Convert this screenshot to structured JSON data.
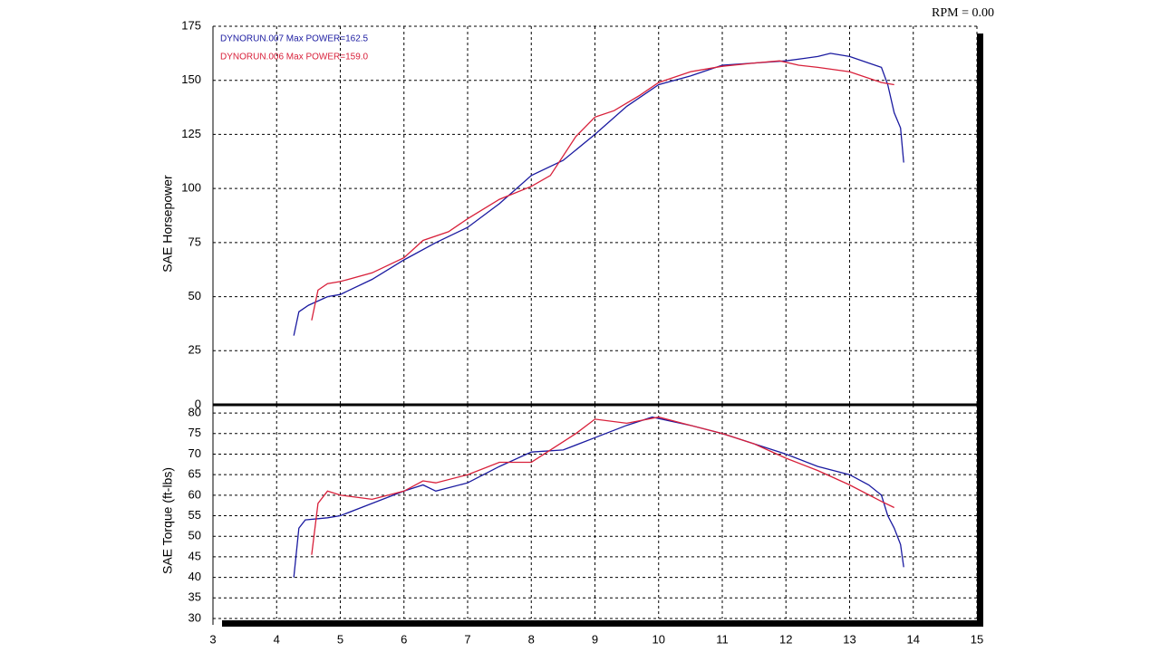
{
  "chart_data": [
    {
      "type": "line",
      "annotation": "RPM = 0.00",
      "ylabel": "SAE Horsepower",
      "xlim": [
        3,
        15
      ],
      "xticks": [
        3,
        4,
        5,
        6,
        7,
        8,
        9,
        10,
        11,
        12,
        13,
        14,
        15
      ],
      "ylim": [
        0,
        175
      ],
      "yticks": [
        0,
        25,
        50,
        75,
        100,
        125,
        150,
        175
      ],
      "grid": true,
      "series": [
        {
          "name": "DYNORUN.007  Max POWER=162.5",
          "color": "#1a1aa0",
          "x": [
            4.27,
            4.35,
            4.5,
            4.8,
            5,
            5.5,
            6,
            6.5,
            7,
            7.5,
            8,
            8.5,
            9,
            9.5,
            10,
            10.5,
            11,
            11.5,
            12,
            12.5,
            12.7,
            13,
            13.3,
            13.5,
            13.6,
            13.7,
            13.8,
            13.85
          ],
          "values": [
            32,
            43,
            46,
            50,
            51,
            58,
            67,
            75,
            82,
            93,
            106,
            113,
            125,
            138,
            148,
            152,
            157,
            158,
            159,
            161,
            162.5,
            161,
            158,
            156,
            148,
            135,
            128,
            112
          ]
        },
        {
          "name": "DYNORUN.006  Max POWER=159.0",
          "color": "#d8203a",
          "x": [
            4.55,
            4.65,
            4.8,
            5,
            5.5,
            6,
            6.3,
            6.7,
            7,
            7.5,
            8,
            8.3,
            8.7,
            9,
            9.3,
            9.7,
            10,
            10.5,
            11,
            11.5,
            11.9,
            12.2,
            12.5,
            13,
            13.5,
            13.7
          ],
          "values": [
            39,
            53,
            56,
            57,
            61,
            68,
            76,
            80,
            86,
            95,
            101,
            106,
            124,
            133,
            136,
            143,
            149,
            154,
            156.5,
            158,
            159,
            157,
            156,
            154,
            149,
            148
          ]
        }
      ]
    },
    {
      "type": "line",
      "ylabel": "SAE Torque (ft-lbs)",
      "xlim": [
        3,
        15
      ],
      "xticks": [
        3,
        4,
        5,
        6,
        7,
        8,
        9,
        10,
        11,
        12,
        13,
        14,
        15
      ],
      "ylim": [
        30,
        82
      ],
      "yticks": [
        30,
        35,
        40,
        45,
        50,
        55,
        60,
        65,
        70,
        75,
        80
      ],
      "grid": true,
      "series": [
        {
          "color": "#1a1aa0",
          "x": [
            4.27,
            4.35,
            4.45,
            4.8,
            5,
            5.5,
            6,
            6.3,
            6.5,
            7,
            7.5,
            8,
            8.5,
            9,
            9.5,
            9.9,
            10.2,
            10.5,
            11,
            11.5,
            12,
            12.5,
            13,
            13.3,
            13.5,
            13.6,
            13.7,
            13.8,
            13.85
          ],
          "values": [
            40,
            52,
            54,
            54.5,
            55,
            58,
            61,
            62.5,
            61,
            63,
            67,
            70.5,
            71,
            74,
            77,
            79,
            78,
            77,
            75,
            72.5,
            70,
            67,
            65,
            62.5,
            60,
            55,
            52,
            48,
            42.5
          ]
        },
        {
          "color": "#d8203a",
          "x": [
            4.55,
            4.65,
            4.8,
            5,
            5.5,
            6,
            6.3,
            6.5,
            7,
            7.5,
            8,
            8.3,
            8.7,
            9,
            9.5,
            10,
            10.5,
            11,
            11.5,
            12,
            12.5,
            13,
            13.5,
            13.7
          ],
          "values": [
            45.5,
            58,
            61,
            60,
            59,
            61,
            63.5,
            63,
            65,
            68,
            68,
            71,
            75,
            78.5,
            77.5,
            79,
            77,
            75,
            72.5,
            69,
            66,
            62.5,
            58.5,
            57
          ]
        }
      ]
    }
  ]
}
